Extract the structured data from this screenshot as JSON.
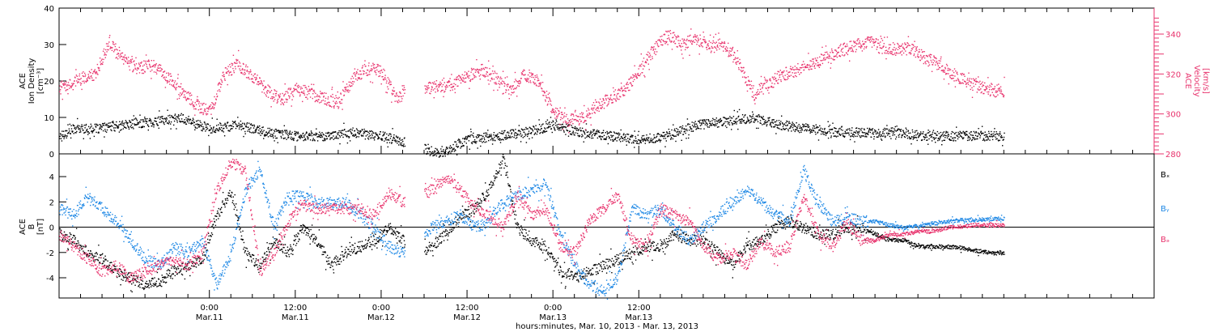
{
  "chart_data": [
    {
      "type": "scatter",
      "panel": "density-velocity",
      "ylabel_lines": [
        "ACE",
        "Ion Density",
        "[cm⁻³]"
      ],
      "y2label_lines": [
        "ACE",
        "Velocity",
        "[km/s]"
      ],
      "ylim": [
        0,
        40
      ],
      "y2lim": [
        280,
        353
      ],
      "y_ticks": [
        0,
        10,
        20,
        30,
        40
      ],
      "y_tick_labels": [
        "0",
        "10",
        "20",
        "30",
        "40"
      ],
      "y2_ticks": [
        280,
        290,
        300,
        310,
        320,
        330,
        340
      ],
      "y2_tick_labels": [
        "280",
        "",
        "300",
        "",
        "320",
        "",
        "340"
      ],
      "series": [
        {
          "color": "#000000",
          "axis": "left",
          "x": [
            -21,
            -19,
            -16,
            -12,
            -8,
            -4,
            0,
            4,
            8,
            12,
            16,
            20,
            24,
            28,
            32,
            36,
            40,
            44,
            48,
            52,
            56,
            60,
            64,
            68,
            72,
            76,
            80,
            84,
            88,
            92,
            96,
            100,
            104,
            108,
            111
          ],
          "values": [
            5,
            7,
            7,
            8,
            9,
            10,
            7,
            8,
            6,
            5,
            5,
            6,
            5,
            3,
            0,
            4,
            5,
            6,
            8,
            6,
            5,
            4,
            5,
            8,
            9,
            10,
            8,
            7,
            6,
            6,
            6,
            5,
            5,
            5,
            5
          ]
        },
        {
          "color": "#e8336d",
          "axis": "right",
          "x": [
            -21,
            -19,
            -16,
            -14,
            -12,
            -10,
            -8,
            -6,
            -4,
            -2,
            0,
            2,
            4,
            6,
            8,
            10,
            12,
            14,
            16,
            18,
            20,
            22,
            24,
            26,
            28,
            30,
            32,
            34,
            36,
            38,
            40,
            42,
            44,
            46,
            48,
            50,
            52,
            54,
            56,
            58,
            60,
            62,
            64,
            66,
            68,
            70,
            72,
            74,
            76,
            78,
            80,
            82,
            84,
            86,
            88,
            90,
            92,
            94,
            96,
            98,
            100,
            102,
            104,
            106,
            108,
            110,
            111
          ],
          "values": [
            313,
            317,
            320,
            336,
            327,
            323,
            325,
            319,
            313,
            305,
            301,
            320,
            325,
            319,
            312,
            307,
            313,
            311,
            308,
            306,
            318,
            323,
            322,
            308,
            312,
            313,
            314,
            315,
            319,
            323,
            318,
            312,
            320,
            317,
            301,
            297,
            298,
            304,
            308,
            312,
            322,
            332,
            340,
            335,
            338,
            334,
            335,
            325,
            310,
            315,
            320,
            322,
            325,
            328,
            332,
            334,
            337,
            333,
            333,
            333,
            328,
            325,
            320,
            316,
            313,
            312,
            312
          ]
        }
      ]
    },
    {
      "type": "scatter",
      "panel": "magnetic-field",
      "ylabel_lines": [
        "ACE",
        "B",
        "[nT]"
      ],
      "ylim": [
        -5.6,
        5.8
      ],
      "y_ticks": [
        -4,
        -2,
        0,
        2,
        4
      ],
      "y_tick_labels": [
        "-4",
        "-2",
        "0",
        "2",
        "4"
      ],
      "reference_line": 0,
      "legend": [
        "Bₓ",
        "Bᵧ",
        "Bₔ"
      ],
      "series": [
        {
          "name": "Bx",
          "color": "#000000",
          "x": [
            -21,
            -19,
            -17,
            -15,
            -13,
            -11,
            -9,
            -7,
            -5,
            -3,
            -1,
            1,
            3,
            5,
            7,
            9,
            11,
            13,
            15,
            17,
            19,
            21,
            23,
            25,
            27,
            29,
            31,
            33,
            35,
            37,
            39,
            41,
            43,
            45,
            47,
            49,
            51,
            53,
            55,
            57,
            59,
            61,
            63,
            65,
            67,
            69,
            71,
            73,
            75,
            77,
            79,
            81,
            83,
            85,
            87,
            89,
            91,
            93,
            95,
            97,
            99,
            101,
            103,
            105,
            107,
            109,
            111
          ],
          "values": [
            -0.5,
            -1,
            -2,
            -2.5,
            -3.5,
            -4,
            -4.5,
            -4.2,
            -3.5,
            -3,
            -2.5,
            1,
            2.8,
            -2,
            -3,
            -1,
            -2,
            0,
            -1,
            -3,
            -2,
            -1.5,
            -1,
            0,
            -1,
            -2,
            -1.5,
            -0.5,
            1,
            1.5,
            3,
            5.5,
            0,
            -1,
            -1.5,
            -3.5,
            -4,
            -3.5,
            -3,
            -2.5,
            -2,
            -1.5,
            -1.5,
            -0.5,
            -1,
            -1,
            -2,
            -3,
            -1.5,
            -1,
            0,
            0.5,
            0,
            -0.5,
            -0.5,
            0,
            0,
            -0.5,
            -1,
            -1,
            -1.5,
            -1.5,
            -1.5,
            -1.6,
            -1.8,
            -2,
            -2
          ]
        },
        {
          "name": "By",
          "color": "#1e88e5",
          "x": [
            -21,
            -19,
            -17,
            -15,
            -13,
            -11,
            -9,
            -7,
            -5,
            -3,
            -1,
            1,
            3,
            5,
            7,
            9,
            11,
            13,
            15,
            17,
            19,
            21,
            23,
            25,
            27,
            29,
            31,
            33,
            35,
            37,
            39,
            41,
            43,
            45,
            47,
            49,
            51,
            53,
            55,
            57,
            59,
            61,
            63,
            65,
            67,
            69,
            71,
            73,
            75,
            77,
            79,
            81,
            83,
            85,
            87,
            89,
            91,
            93,
            95,
            97,
            99,
            101,
            103,
            105,
            107,
            109,
            111
          ],
          "values": [
            1.5,
            1,
            2.5,
            1.5,
            0.5,
            -1,
            -2.5,
            -3,
            -1.5,
            -2,
            -1,
            -4.5,
            -2,
            3,
            4.5,
            0,
            2.5,
            2.5,
            2,
            2,
            2,
            1,
            0,
            -1.5,
            -2,
            -1,
            0,
            0.5,
            1,
            0,
            0.5,
            2,
            2.5,
            3,
            3.5,
            -0.5,
            -3,
            -4.5,
            -5,
            -4,
            1.5,
            1,
            1.5,
            0,
            -1,
            0,
            1,
            2,
            3,
            2,
            1,
            0.5,
            4.5,
            2,
            0.5,
            0.8,
            0.5,
            0.5,
            0.2,
            0,
            0.2,
            0.3,
            0.5,
            0.6,
            0.6,
            0.7,
            0.7
          ]
        },
        {
          "name": "Bz",
          "color": "#e8336d",
          "x": [
            -21,
            -19,
            -17,
            -15,
            -13,
            -11,
            -9,
            -7,
            -5,
            -3,
            -1,
            1,
            3,
            5,
            7,
            9,
            11,
            13,
            15,
            17,
            19,
            21,
            23,
            25,
            27,
            29,
            31,
            33,
            35,
            37,
            39,
            41,
            43,
            45,
            47,
            49,
            51,
            53,
            55,
            57,
            59,
            61,
            63,
            65,
            67,
            69,
            71,
            73,
            75,
            77,
            79,
            81,
            83,
            85,
            87,
            89,
            91,
            93,
            95,
            97,
            99,
            101,
            103,
            105,
            107,
            109,
            111
          ],
          "values": [
            -0.5,
            -1.5,
            -2.5,
            -3.5,
            -3,
            -4,
            -3.5,
            -3,
            -2.5,
            -3,
            -2,
            3,
            5.2,
            4.5,
            -3.5,
            -2,
            0.5,
            2,
            1.5,
            1.5,
            1.5,
            1.5,
            1,
            2.8,
            2,
            2.5,
            3,
            4,
            3,
            1.5,
            1,
            0,
            2.5,
            1,
            1.5,
            -1.5,
            -2,
            0.5,
            1.5,
            2.5,
            -1,
            -1.5,
            1.5,
            1,
            0.5,
            -1.5,
            -2.5,
            -2,
            -3,
            -1,
            -2,
            -1.5,
            2.5,
            -0.5,
            -1.5,
            0.5,
            -1,
            -1,
            -0.5,
            -0.5,
            -0.3,
            -0.3,
            0,
            0.1,
            0.2,
            0.2,
            0.2
          ]
        }
      ]
    },
    {
      "type": "time-axis",
      "xlim": [
        -21,
        132
      ],
      "x_major_ticks": [
        0,
        12,
        24,
        36,
        48,
        60
      ],
      "x_tick_time_labels": [
        "0:00",
        "12:00",
        "0:00",
        "12:00",
        "0:00",
        "12:00"
      ],
      "x_tick_date_labels": [
        "Mar.11",
        "Mar.11",
        "Mar.12",
        "Mar.12",
        "Mar.13",
        "Mar.13"
      ],
      "xlabel": "hours:minutes, Mar. 10, 2013 - Mar. 13, 2013"
    }
  ]
}
